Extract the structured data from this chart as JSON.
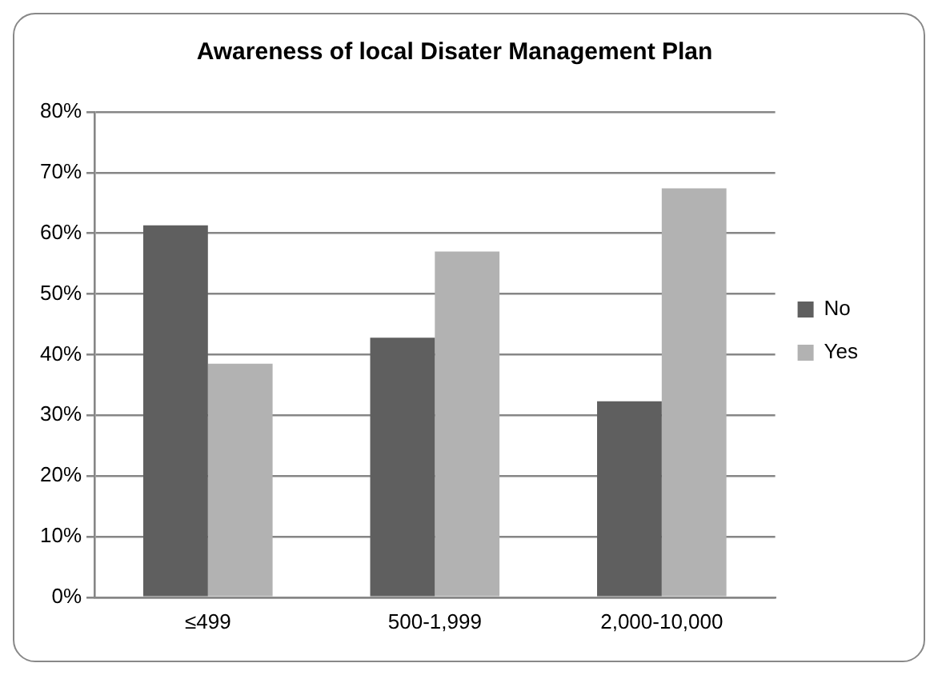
{
  "chart_data": {
    "type": "bar",
    "title": "Awareness of local Disater Management Plan",
    "categories": [
      "≤499",
      "500-1,999",
      "2,000-10,000"
    ],
    "series": [
      {
        "name": "No",
        "color": "#5f5f5f",
        "values": [
          61.3,
          42.8,
          32.3
        ]
      },
      {
        "name": "Yes",
        "color": "#b2b2b2",
        "values": [
          38.5,
          57.0,
          67.4
        ]
      }
    ],
    "ylim": [
      0,
      80
    ],
    "yticks": [
      {
        "value": 0,
        "label": "0%"
      },
      {
        "value": 10,
        "label": "10%"
      },
      {
        "value": 20,
        "label": "20%"
      },
      {
        "value": 30,
        "label": "30%"
      },
      {
        "value": 40,
        "label": "40%"
      },
      {
        "value": 50,
        "label": "50%"
      },
      {
        "value": 60,
        "label": "60%"
      },
      {
        "value": 70,
        "label": "70%"
      },
      {
        "value": 80,
        "label": "80%"
      }
    ],
    "grid": "y",
    "legend": "right"
  }
}
